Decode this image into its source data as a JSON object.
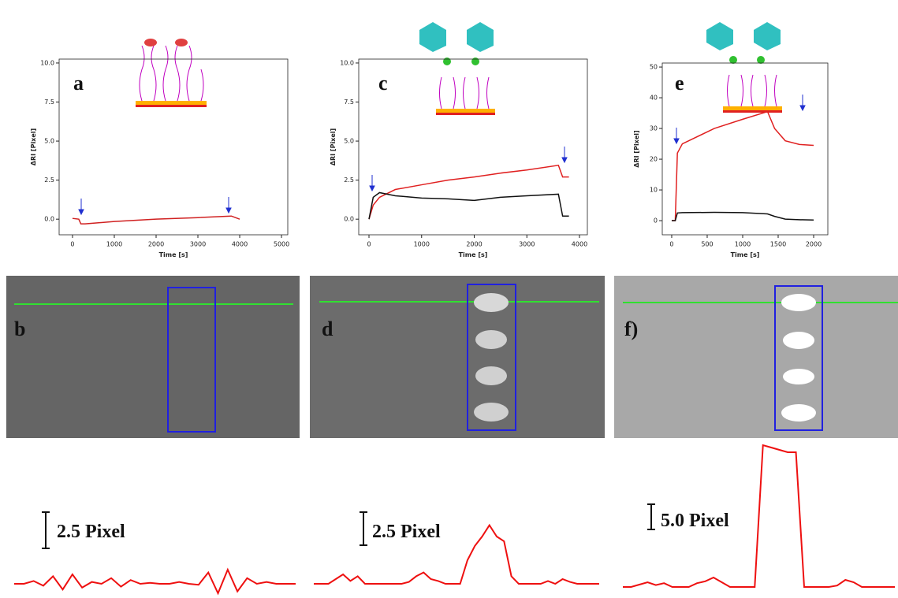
{
  "chart_data": [
    {
      "type": "line",
      "y_label": "ΔRI [Pixel]",
      "x_label": "Time [s]",
      "xlim": [
        -320,
        5150
      ],
      "ylim": [
        -1.0,
        10.25
      ],
      "xticks": [
        0,
        1000,
        2000,
        3000,
        4000,
        5000
      ],
      "yticks": [
        {
          "value": 0,
          "label": "0.0"
        },
        2.5,
        {
          "value": 5,
          "label": "5.0"
        },
        7.5,
        {
          "value": 10,
          "label": "10.0"
        }
      ],
      "x": [
        0,
        150,
        200,
        300,
        1000,
        2000,
        3000,
        3800,
        4000
      ],
      "series": [
        {
          "color": "#d02020",
          "values": [
            0.05,
            0.0,
            -0.3,
            -0.3,
            -0.15,
            0.0,
            0.1,
            0.2,
            0.0
          ]
        }
      ]
    },
    {
      "type": "line",
      "y_label": "ΔRI [Pixel]",
      "x_label": "Time [s]",
      "xlim": [
        -195,
        4150
      ],
      "ylim": [
        -1.0,
        10.25
      ],
      "xticks": [
        0,
        1000,
        2000,
        3000,
        4000
      ],
      "yticks": [
        {
          "value": 0,
          "label": "0.0"
        },
        2.5,
        {
          "value": 5,
          "label": "5.0"
        },
        7.5,
        {
          "value": 10,
          "label": "10.0"
        }
      ],
      "x": [
        0,
        80,
        200,
        500,
        1000,
        1500,
        2000,
        2500,
        3000,
        3600,
        3680,
        3800
      ],
      "series": [
        {
          "color": "#e02020",
          "values": [
            0,
            0.9,
            1.4,
            1.9,
            2.2,
            2.5,
            2.7,
            2.95,
            3.15,
            3.45,
            2.7,
            2.7
          ]
        },
        {
          "color": "#111111",
          "values": [
            0,
            1.4,
            1.7,
            1.5,
            1.35,
            1.3,
            1.2,
            1.4,
            1.5,
            1.6,
            0.2,
            0.2
          ]
        }
      ]
    },
    {
      "type": "line",
      "y_label": "ΔRI [Pixel]",
      "x_label": "Time [s]",
      "xlim": [
        -133,
        2200
      ],
      "ylim": [
        -4.6,
        51.3
      ],
      "xticks": [
        0,
        500,
        1000,
        1500,
        2000
      ],
      "yticks": [
        0,
        10,
        20,
        30,
        40,
        50
      ],
      "x": [
        0,
        50,
        80,
        150,
        600,
        1000,
        1350,
        1450,
        1600,
        1800,
        2000
      ],
      "series": [
        {
          "color": "#e02020",
          "values": [
            0,
            0,
            22,
            25,
            30,
            33,
            35.5,
            30,
            26,
            24.8,
            24.5
          ]
        },
        {
          "color": "#111111",
          "values": [
            0,
            0,
            2.5,
            2.6,
            2.7,
            2.6,
            2.2,
            1.4,
            0.5,
            0.3,
            0.2
          ]
        }
      ]
    }
  ],
  "panels": [
    "a",
    "b",
    "c",
    "d",
    "e",
    "f)"
  ],
  "profiles": [
    {
      "label": "2.5 Pixel",
      "values": [
        0,
        0,
        0.3,
        -0.2,
        0.8,
        -0.6,
        1.0,
        -0.4,
        0.2,
        0,
        0.6,
        -0.3,
        0.4,
        0,
        0.1,
        0,
        0,
        0.2,
        0,
        -0.1,
        1.2,
        -1.0,
        1.5,
        -0.8,
        0.6,
        0,
        0.2,
        0,
        0,
        0
      ]
    },
    {
      "label": "2.5 Pixel",
      "values": [
        0,
        0,
        0,
        0.5,
        1,
        0.3,
        0.8,
        0,
        0,
        0,
        0,
        0,
        0,
        0.2,
        0.8,
        1.2,
        0.5,
        0.3,
        0,
        0,
        0,
        2.5,
        4,
        5,
        6.2,
        5,
        4.5,
        0.8,
        0,
        0,
        0,
        0,
        0.3,
        0,
        0.5,
        0.2,
        0,
        0,
        0,
        0
      ]
    },
    {
      "label": "5.0 Pixel",
      "values": [
        0,
        0,
        0.5,
        1,
        0.4,
        0.8,
        0,
        0,
        0,
        0.8,
        1.2,
        2,
        1,
        0,
        0,
        0,
        0,
        30,
        29.5,
        29,
        28.5,
        28.5,
        0,
        0,
        0,
        0,
        0.3,
        1.5,
        1,
        0,
        0,
        0,
        0,
        0
      ]
    }
  ]
}
